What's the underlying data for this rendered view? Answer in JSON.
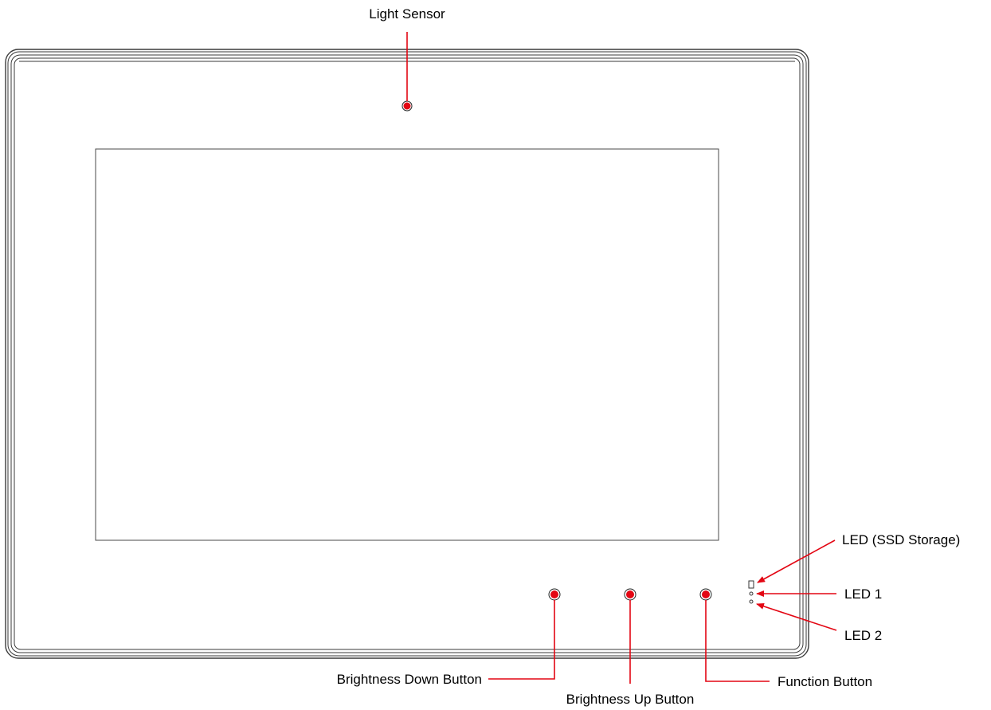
{
  "colors": {
    "callout": "#e30613",
    "outline": "#3a3a3a"
  },
  "callouts": {
    "light_sensor": "Light Sensor",
    "led_ssd": "LED (SSD Storage)",
    "led_1": "LED 1",
    "led_2": "LED 2",
    "brightness_down": "Brightness Down Button",
    "brightness_up": "Brightness Up Button",
    "function_button": "Function Button"
  }
}
